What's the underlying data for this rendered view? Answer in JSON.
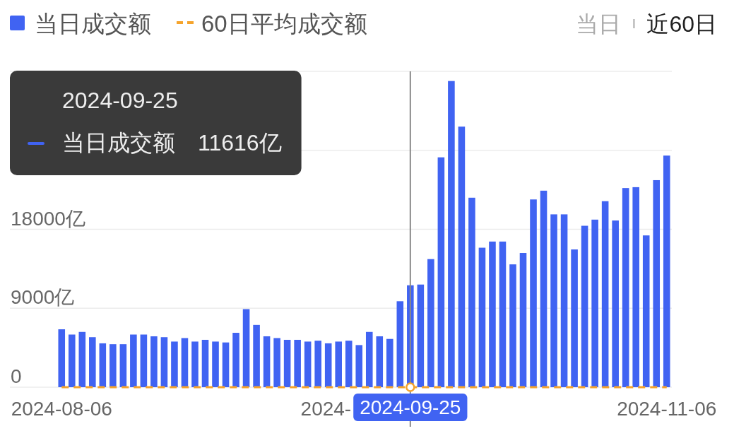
{
  "chart_data": {
    "type": "bar",
    "categories": [
      "2024-08-06",
      null,
      null,
      null,
      null,
      null,
      null,
      null,
      null,
      null,
      null,
      null,
      null,
      null,
      null,
      null,
      null,
      null,
      null,
      null,
      null,
      null,
      null,
      null,
      null,
      null,
      null,
      null,
      null,
      null,
      null,
      null,
      null,
      null,
      "2024-09-25",
      null,
      null,
      null,
      null,
      null,
      null,
      null,
      null,
      null,
      null,
      null,
      null,
      null,
      null,
      null,
      null,
      null,
      null,
      null,
      null,
      null,
      null,
      null,
      null,
      "2024-11-06"
    ],
    "series": [
      {
        "name": "当日成交额",
        "color": "#4063f2",
        "values": [
          6600,
          6000,
          6300,
          5700,
          5000,
          4900,
          4900,
          6000,
          6000,
          5800,
          5700,
          5200,
          5600,
          5200,
          5400,
          5200,
          5100,
          6200,
          8900,
          7100,
          5800,
          5600,
          5400,
          5400,
          5200,
          5300,
          5000,
          5200,
          5300,
          4800,
          6300,
          5800,
          5500,
          9800,
          11616,
          11700,
          14600,
          26200,
          34900,
          29700,
          21600,
          15900,
          16600,
          16600,
          14000,
          15300,
          21400,
          22400,
          19700,
          19700,
          15700,
          18400,
          19100,
          21200,
          19000,
          22700,
          22800,
          17300,
          23600,
          26400
        ]
      },
      {
        "name": "60日平均成交额",
        "type": "line",
        "color": "#f5a42c",
        "line_style": "dashed",
        "values": [
          0,
          0,
          0,
          0,
          0,
          0,
          0,
          0,
          0,
          0,
          0,
          0,
          0,
          0,
          0,
          0,
          0,
          0,
          0,
          0,
          0,
          0,
          0,
          0,
          0,
          0,
          0,
          0,
          0,
          0,
          0,
          0,
          0,
          0,
          0,
          0,
          0,
          0,
          0,
          0,
          0,
          0,
          0,
          0,
          0,
          0,
          0,
          0,
          0,
          0,
          0,
          0,
          0,
          0,
          0,
          0,
          0,
          0,
          0,
          0
        ]
      }
    ],
    "ylim": [
      0,
      36000
    ],
    "yticks": [
      0,
      {
        "value": 9000,
        "label": "9000亿"
      },
      {
        "value": 18000,
        "label": "18000亿"
      },
      {
        "value": 27000,
        "label": null
      },
      {
        "value": 36000,
        "label": null
      }
    ],
    "grid": "y",
    "legend": "top left",
    "annotations": [
      "当日",
      "近60日",
      "2024-09-25",
      "当日成交额",
      "11616亿",
      "2024-"
    ]
  }
}
